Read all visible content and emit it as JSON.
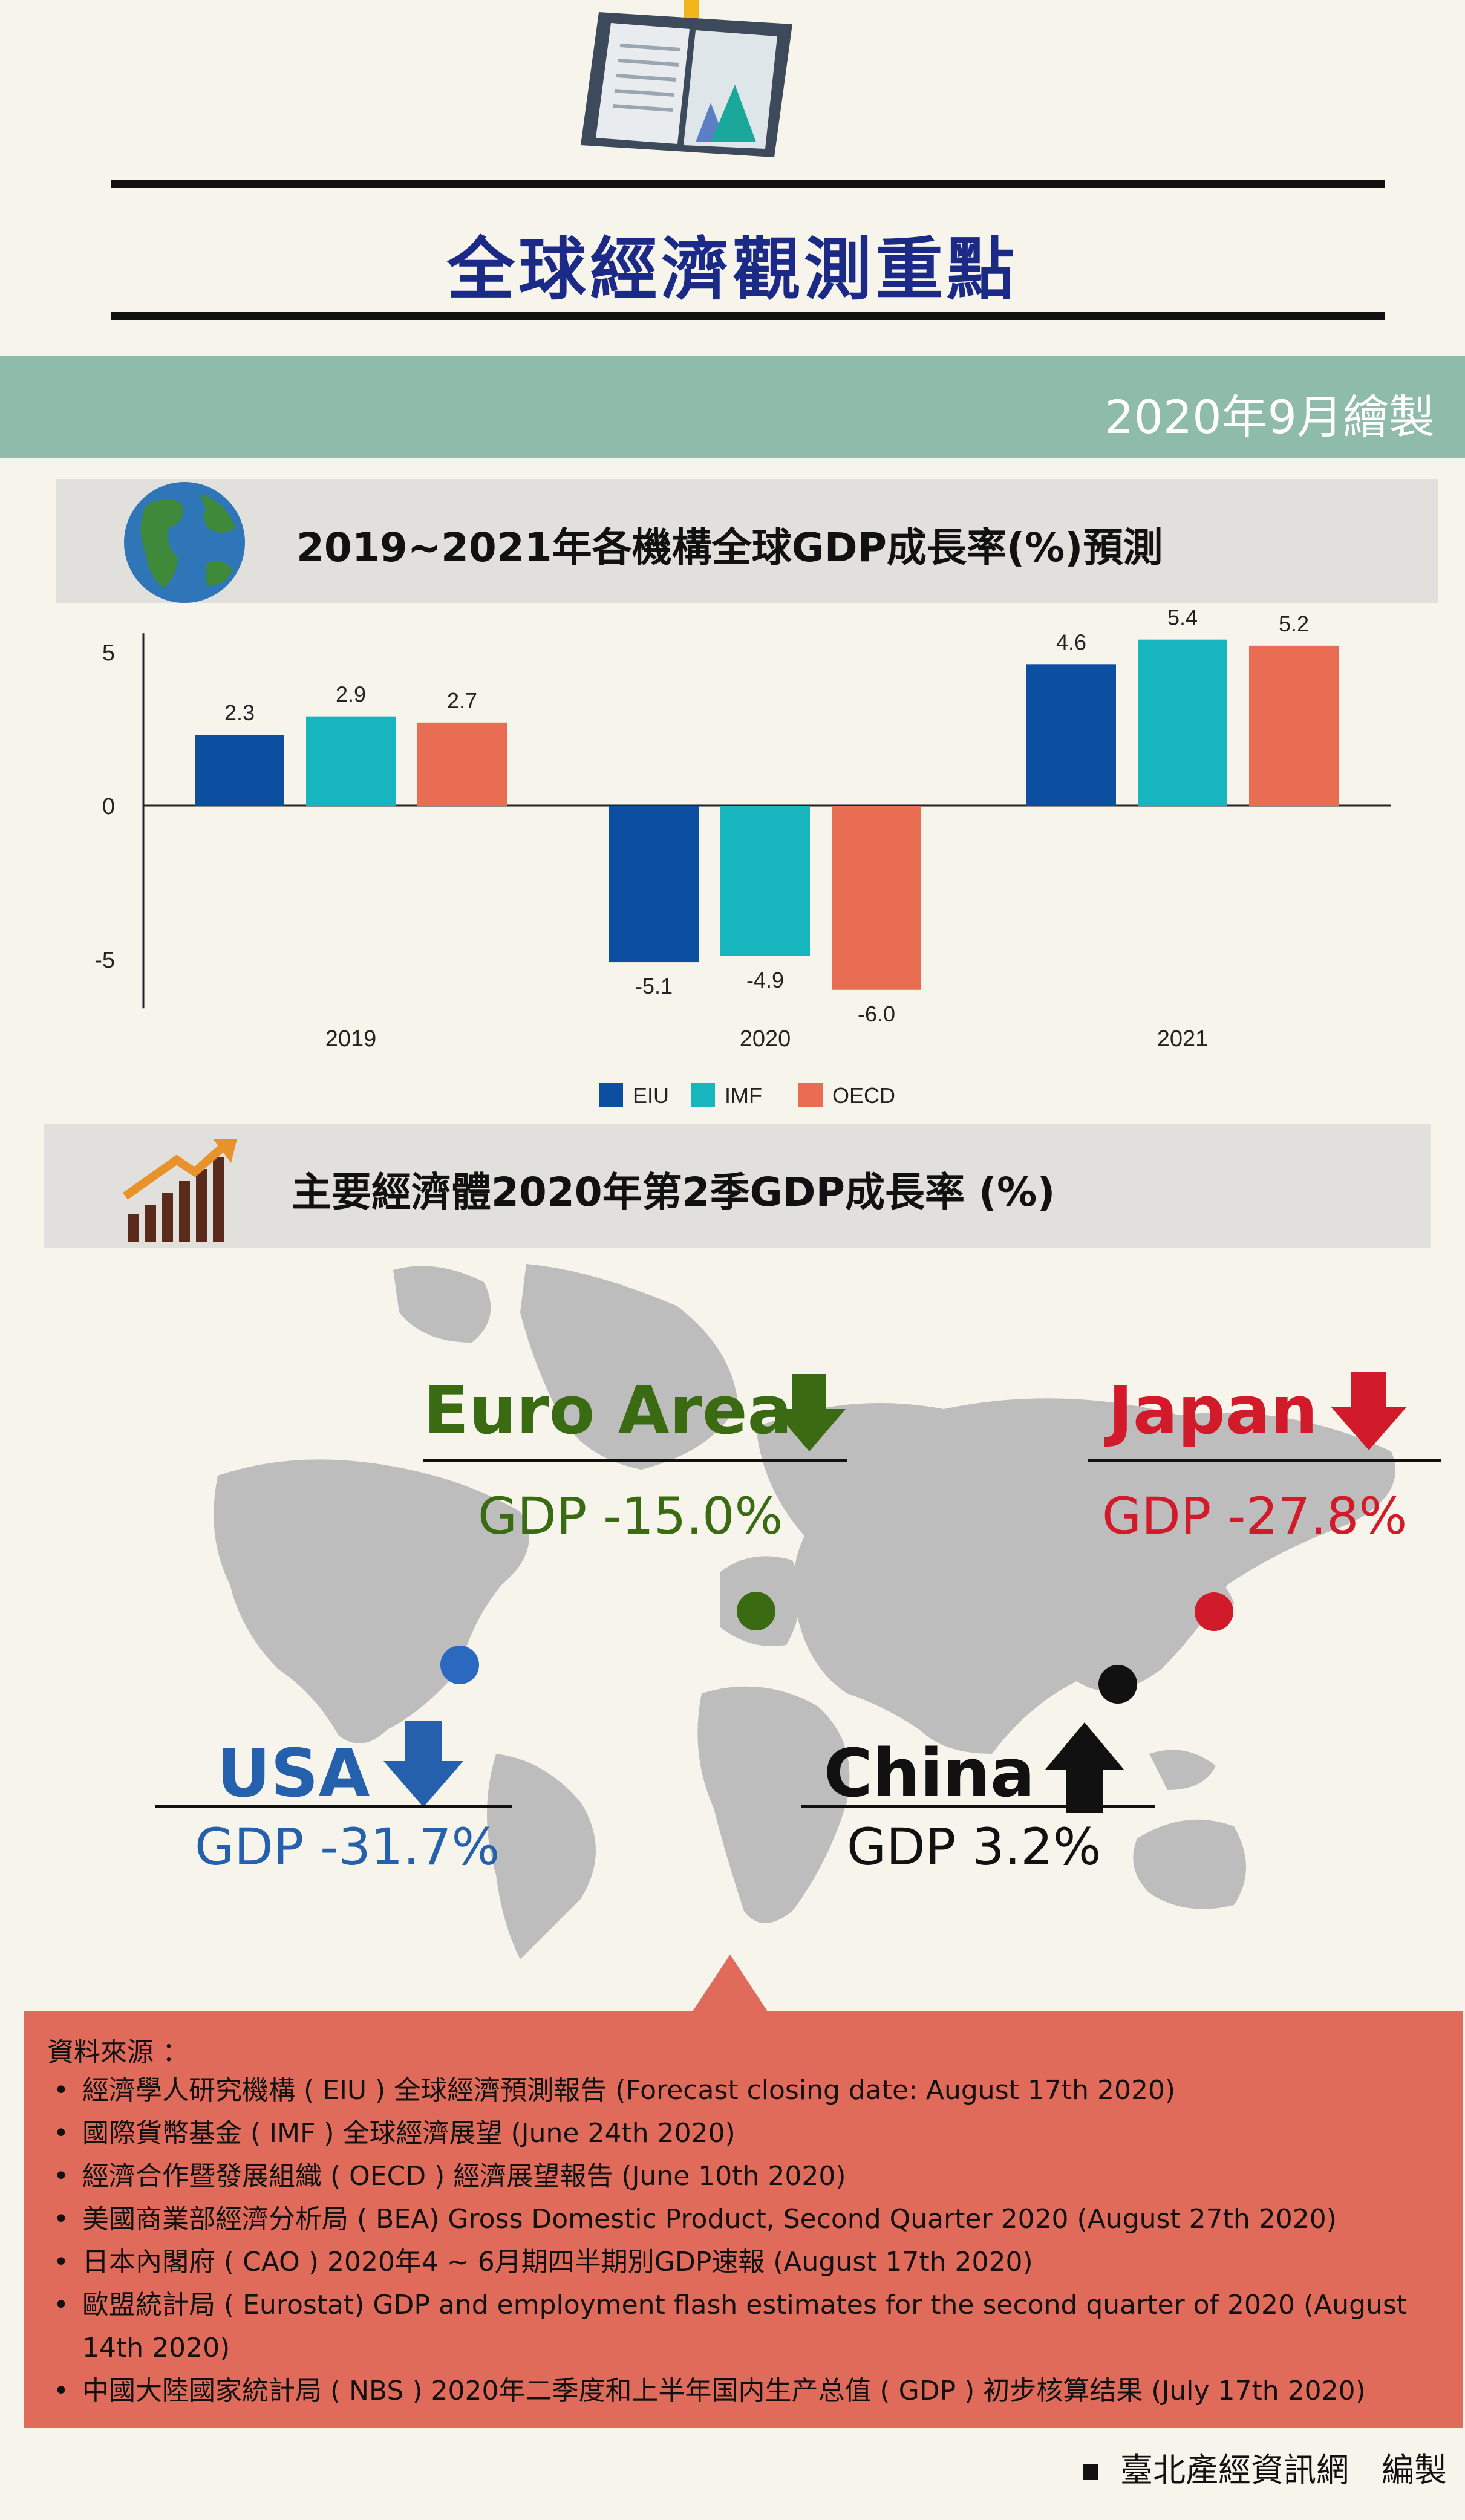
{
  "header": {
    "title": "全球經濟觀測重點",
    "date_note": "2020年9月繪製"
  },
  "section1": {
    "title": "2019~2021年各機構全球GDP成長率(%)預測"
  },
  "chart_data": {
    "type": "bar",
    "categories": [
      "2019",
      "2020",
      "2021"
    ],
    "series": [
      {
        "name": "EIU",
        "values": [
          2.3,
          -5.1,
          4.6
        ],
        "color": "#0c4ea0"
      },
      {
        "name": "IMF",
        "values": [
          2.9,
          -4.9,
          5.4
        ],
        "color": "#17b5bd"
      },
      {
        "name": "OECD",
        "values": [
          2.7,
          -6.0,
          5.2
        ],
        "color": "#e96d52"
      }
    ],
    "data_labels": [
      [
        "2.3",
        "-5.1",
        "4.6"
      ],
      [
        "2.9",
        "-4.9",
        "5.4"
      ],
      [
        "2.7",
        "-6.0",
        "5.2"
      ]
    ],
    "yticks": [
      "5",
      "0",
      "-5"
    ],
    "ylim": [
      -6.6,
      6.0
    ],
    "legend_position": "bottom"
  },
  "section2": {
    "title": "主要經濟體2020年第2季GDP成長率 (%)"
  },
  "economies": {
    "euro": {
      "name": "Euro Area",
      "gdp": "GDP -15.0%",
      "color": "#3a6b12",
      "trend": "down"
    },
    "japan": {
      "name": "Japan",
      "gdp": "GDP -27.8%",
      "color": "#d11a2a",
      "trend": "down"
    },
    "usa": {
      "name": "USA",
      "gdp": "GDP -31.7%",
      "color": "#2560ad",
      "trend": "down"
    },
    "china": {
      "name": "China",
      "gdp": "GDP 3.2%",
      "color": "#111111",
      "trend": "up"
    }
  },
  "sources": {
    "heading": "資料來源 ：",
    "items": [
      "經濟學人研究機構 ( EIU ) 全球經濟預測報告 (Forecast closing date: August 17th 2020)",
      "國際貨幣基金 ( IMF ) 全球經濟展望 (June 24th 2020)",
      "經濟合作暨發展組織 ( OECD ) 經濟展望報告 (June 10th 2020)",
      "美國商業部經濟分析局 ( BEA) Gross Domestic Product, Second Quarter 2020 (August 27th 2020)",
      "日本內閣府 ( CAO ) 2020年4 ~ 6月期四半期別GDP速報 (August 17th 2020)",
      "歐盟統計局 ( Eurostat) GDP and employment flash estimates for the second quarter of 2020 (August 14th 2020)",
      "中國大陸國家統計局 ( NBS ) 2020年二季度和上半年国内生产总值 ( GDP ) 初步核算结果 (July 17th 2020)"
    ]
  },
  "footer": {
    "text": "臺北產經資訊網　編製"
  }
}
